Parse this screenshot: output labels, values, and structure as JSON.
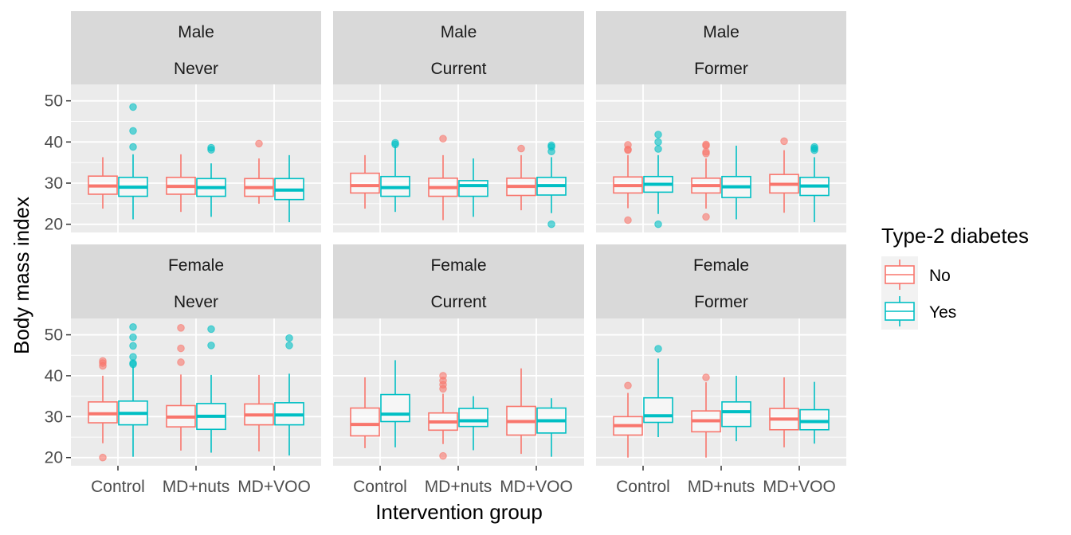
{
  "chart_data": {
    "type": "boxplot",
    "xlabel": "Intervention group",
    "ylabel": "Body mass index",
    "categories": [
      "Control",
      "MD+nuts",
      "MD+VOO"
    ],
    "yticks": [
      20,
      30,
      40,
      50
    ],
    "ylim": [
      18,
      54
    ],
    "legend": {
      "title": "Type-2 diabetes",
      "position": "right",
      "entries": [
        {
          "label": "No",
          "color": "#F8766D"
        },
        {
          "label": "Yes",
          "color": "#00BFC4"
        }
      ]
    },
    "panels": [
      {
        "sex": "Male",
        "smoking": "Never",
        "groups": [
          {
            "category": "Control",
            "No": {
              "min": 23.8,
              "q1": 27.3,
              "median": 29.3,
              "q3": 31.7,
              "max": 36.3,
              "outliers": []
            },
            "Yes": {
              "min": 21.2,
              "q1": 26.8,
              "median": 29.0,
              "q3": 31.4,
              "max": 37.0,
              "outliers": [
                48.5,
                42.7,
                38.8
              ]
            }
          },
          {
            "category": "MD+nuts",
            "No": {
              "min": 23.0,
              "q1": 27.3,
              "median": 29.2,
              "q3": 31.4,
              "max": 37.0,
              "outliers": []
            },
            "Yes": {
              "min": 21.8,
              "q1": 26.8,
              "median": 28.9,
              "q3": 31.1,
              "max": 34.8,
              "outliers": [
                38.6,
                38.1
              ]
            }
          },
          {
            "category": "MD+VOO",
            "No": {
              "min": 25.0,
              "q1": 26.8,
              "median": 28.9,
              "q3": 31.1,
              "max": 36.0,
              "outliers": [
                39.6
              ]
            },
            "Yes": {
              "min": 20.5,
              "q1": 26.0,
              "median": 28.3,
              "q3": 31.1,
              "max": 36.8,
              "outliers": []
            }
          }
        ]
      },
      {
        "sex": "Male",
        "smoking": "Current",
        "groups": [
          {
            "category": "Control",
            "No": {
              "min": 23.8,
              "q1": 27.6,
              "median": 29.4,
              "q3": 32.4,
              "max": 36.8,
              "outliers": []
            },
            "Yes": {
              "min": 23.0,
              "q1": 26.8,
              "median": 28.9,
              "q3": 31.6,
              "max": 39.0,
              "outliers": [
                39.8,
                39.4
              ]
            }
          },
          {
            "category": "MD+nuts",
            "No": {
              "min": 21.0,
              "q1": 26.8,
              "median": 28.9,
              "q3": 31.2,
              "max": 36.8,
              "outliers": [
                40.8
              ]
            },
            "Yes": {
              "min": 21.8,
              "q1": 26.8,
              "median": 29.4,
              "q3": 30.6,
              "max": 36.0,
              "outliers": []
            }
          },
          {
            "category": "MD+VOO",
            "No": {
              "min": 23.4,
              "q1": 27.0,
              "median": 29.2,
              "q3": 31.2,
              "max": 36.8,
              "outliers": [
                38.4
              ]
            },
            "Yes": {
              "min": 22.7,
              "q1": 27.1,
              "median": 29.4,
              "q3": 31.4,
              "max": 36.3,
              "outliers": [
                39.2,
                38.8,
                37.7,
                20.0
              ]
            }
          }
        ]
      },
      {
        "sex": "Male",
        "smoking": "Former",
        "groups": [
          {
            "category": "Control",
            "No": {
              "min": 23.9,
              "q1": 27.6,
              "median": 29.4,
              "q3": 31.5,
              "max": 36.8,
              "outliers": [
                39.3,
                38.2,
                38.0,
                21.0
              ]
            },
            "Yes": {
              "min": 22.5,
              "q1": 27.8,
              "median": 29.7,
              "q3": 31.6,
              "max": 36.8,
              "outliers": [
                41.8,
                40.0,
                38.3,
                20.0
              ]
            }
          },
          {
            "category": "MD+nuts",
            "No": {
              "min": 23.8,
              "q1": 27.6,
              "median": 29.4,
              "q3": 31.2,
              "max": 36.0,
              "outliers": [
                39.4,
                39.1,
                37.6,
                37.2,
                21.8
              ]
            },
            "Yes": {
              "min": 21.2,
              "q1": 26.5,
              "median": 29.1,
              "q3": 31.6,
              "max": 39.1,
              "outliers": []
            }
          },
          {
            "category": "MD+VOO",
            "No": {
              "min": 22.8,
              "q1": 27.6,
              "median": 29.7,
              "q3": 32.1,
              "max": 38.0,
              "outliers": [
                40.2
              ]
            },
            "Yes": {
              "min": 20.5,
              "q1": 27.0,
              "median": 29.3,
              "q3": 31.4,
              "max": 36.3,
              "outliers": [
                38.8,
                38.4,
                38.0
              ]
            }
          }
        ]
      },
      {
        "sex": "Female",
        "smoking": "Never",
        "groups": [
          {
            "category": "Control",
            "No": {
              "min": 23.5,
              "q1": 28.5,
              "median": 30.7,
              "q3": 33.6,
              "max": 40.0,
              "outliers": [
                43.6,
                43.1,
                42.4,
                20.0
              ]
            },
            "Yes": {
              "min": 20.2,
              "q1": 28.0,
              "median": 30.8,
              "q3": 33.8,
              "max": 42.2,
              "outliers": [
                51.9,
                49.4,
                47.3,
                44.6,
                43.1,
                42.8
              ]
            }
          },
          {
            "category": "MD+nuts",
            "No": {
              "min": 21.7,
              "q1": 27.5,
              "median": 29.9,
              "q3": 32.7,
              "max": 40.3,
              "outliers": [
                51.7,
                46.7,
                43.3
              ]
            },
            "Yes": {
              "min": 21.2,
              "q1": 26.9,
              "median": 30.1,
              "q3": 33.2,
              "max": 40.2,
              "outliers": [
                51.4,
                47.4
              ]
            }
          },
          {
            "category": "MD+VOO",
            "No": {
              "min": 21.5,
              "q1": 28.0,
              "median": 30.4,
              "q3": 33.1,
              "max": 40.2,
              "outliers": []
            },
            "Yes": {
              "min": 20.5,
              "q1": 28.0,
              "median": 30.4,
              "q3": 33.4,
              "max": 40.5,
              "outliers": [
                49.2,
                47.4
              ]
            }
          }
        ]
      },
      {
        "sex": "Female",
        "smoking": "Current",
        "groups": [
          {
            "category": "Control",
            "No": {
              "min": 22.3,
              "q1": 25.3,
              "median": 28.1,
              "q3": 32.1,
              "max": 39.6,
              "outliers": []
            },
            "Yes": {
              "min": 22.5,
              "q1": 28.8,
              "median": 30.6,
              "q3": 35.4,
              "max": 43.8,
              "outliers": []
            }
          },
          {
            "category": "MD+nuts",
            "No": {
              "min": 23.3,
              "q1": 26.7,
              "median": 28.7,
              "q3": 30.9,
              "max": 35.6,
              "outliers": [
                40.0,
                38.8,
                37.8,
                36.8,
                20.4
              ]
            },
            "Yes": {
              "min": 21.8,
              "q1": 27.6,
              "median": 29.0,
              "q3": 32.0,
              "max": 35.0,
              "outliers": []
            }
          },
          {
            "category": "MD+VOO",
            "No": {
              "min": 20.9,
              "q1": 25.5,
              "median": 28.8,
              "q3": 32.5,
              "max": 41.8,
              "outliers": []
            },
            "Yes": {
              "min": 20.2,
              "q1": 26.0,
              "median": 29.0,
              "q3": 32.1,
              "max": 34.5,
              "outliers": []
            }
          }
        ]
      },
      {
        "sex": "Female",
        "smoking": "Former",
        "groups": [
          {
            "category": "Control",
            "No": {
              "min": 20.0,
              "q1": 25.5,
              "median": 27.8,
              "q3": 30.0,
              "max": 35.8,
              "outliers": [
                37.6
              ]
            },
            "Yes": {
              "min": 25.0,
              "q1": 28.6,
              "median": 30.2,
              "q3": 34.6,
              "max": 44.2,
              "outliers": [
                46.6
              ]
            }
          },
          {
            "category": "MD+nuts",
            "No": {
              "min": 20.0,
              "q1": 26.3,
              "median": 29.0,
              "q3": 31.4,
              "max": 38.4,
              "outliers": [
                39.6
              ]
            },
            "Yes": {
              "min": 24.0,
              "q1": 27.6,
              "median": 31.2,
              "q3": 33.6,
              "max": 40.0,
              "outliers": []
            }
          },
          {
            "category": "MD+VOO",
            "No": {
              "min": 22.5,
              "q1": 26.8,
              "median": 29.4,
              "q3": 32.0,
              "max": 39.6,
              "outliers": []
            },
            "Yes": {
              "min": 23.4,
              "q1": 26.8,
              "median": 28.8,
              "q3": 31.7,
              "max": 38.5,
              "outliers": []
            }
          }
        ]
      }
    ]
  }
}
